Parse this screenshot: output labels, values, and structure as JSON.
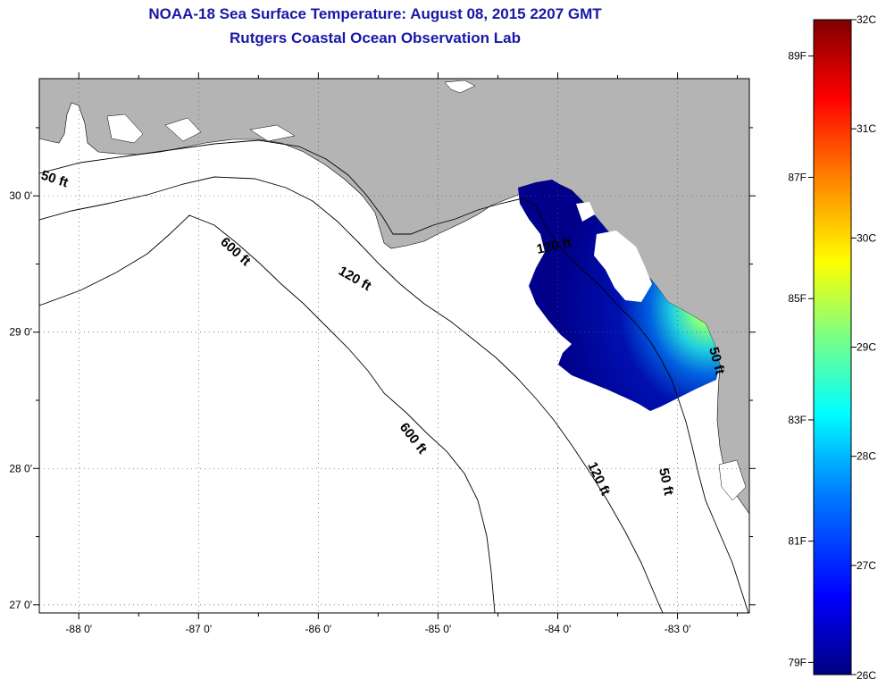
{
  "header": {
    "title": "NOAA-18 Sea Surface Temperature:  August 08, 2015 2207 GMT",
    "subtitle": "Rutgers Coastal Ocean Observation Lab"
  },
  "map": {
    "lon_range": [
      -88.33,
      -82.4
    ],
    "lat_range": [
      26.94,
      30.86
    ],
    "lon_ticks": [
      {
        "value": -88,
        "label": "-88 0'"
      },
      {
        "value": -87,
        "label": "-87 0'"
      },
      {
        "value": -86,
        "label": "-86 0'"
      },
      {
        "value": -85,
        "label": "-85 0'"
      },
      {
        "value": -84,
        "label": "-84 0'"
      },
      {
        "value": -83,
        "label": "-83 0'"
      }
    ],
    "lat_ticks": [
      {
        "value": 30,
        "label": "30 0'"
      },
      {
        "value": 29,
        "label": "29 0'"
      },
      {
        "value": 28,
        "label": "28 0'"
      },
      {
        "value": 27,
        "label": "27 0'"
      }
    ],
    "grid": true,
    "land_color": "#b4b4b4",
    "water_color": "#ffffff",
    "contours": [
      {
        "label": "50 ft"
      },
      {
        "label": "120 ft"
      },
      {
        "label": "600 ft"
      },
      {
        "label": "600 ft"
      },
      {
        "label": "120 ft"
      },
      {
        "label": "120 ft"
      },
      {
        "label": "50 ft"
      },
      {
        "label": "50 ft"
      }
    ]
  },
  "colorbar": {
    "min_c": 26,
    "max_c": 32,
    "celsius_labels": [
      "32C",
      "31C",
      "30C",
      "29C",
      "28C",
      "27C",
      "26C"
    ],
    "fahrenheit_labels": [
      "89F",
      "87F",
      "85F",
      "83F",
      "81F",
      "79F"
    ],
    "colors": [
      "#000080",
      "#0000ff",
      "#0080ff",
      "#00ffff",
      "#80ff80",
      "#ffff00",
      "#ff8000",
      "#ff0000",
      "#800000"
    ]
  }
}
